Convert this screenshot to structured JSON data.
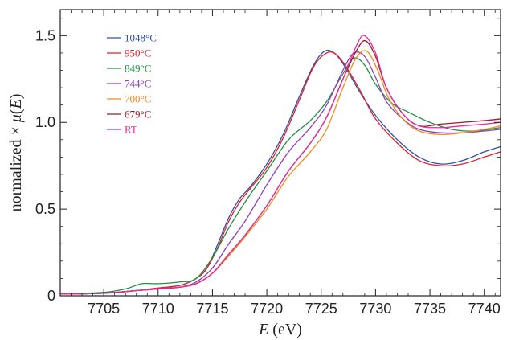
{
  "chart_data": {
    "type": "line",
    "title": "",
    "xlabel_italic": "E",
    "xlabel_rest": " (eV)",
    "ylabel_prefix": "normalized × ",
    "ylabel_mu": "μ",
    "ylabel_open": "(",
    "ylabel_italic": "E",
    "ylabel_close": ")",
    "xlim": [
      7701,
      7741.5
    ],
    "ylim": [
      0,
      1.65
    ],
    "xticks": [
      {
        "value": 7705,
        "label": "7705"
      },
      {
        "value": 7710,
        "label": "7710"
      },
      {
        "value": 7715,
        "label": "7715"
      },
      {
        "value": 7720,
        "label": "7720"
      },
      {
        "value": 7725,
        "label": "7725"
      },
      {
        "value": 7730,
        "label": "7730"
      },
      {
        "value": 7735,
        "label": "7735"
      },
      {
        "value": 7740,
        "label": "7740"
      }
    ],
    "yticks": [
      {
        "value": 0,
        "label": "0"
      },
      {
        "value": 0.5,
        "label": "0.5"
      },
      {
        "value": 1.0,
        "label": "1.0"
      },
      {
        "value": 1.5,
        "label": "1.5"
      }
    ],
    "legend_position": "top-left",
    "series": [
      {
        "name": "1048°C",
        "color": "#3050a8",
        "x": [
          7701,
          7705,
          7708,
          7710,
          7712,
          7713.5,
          7714.5,
          7715.5,
          7716.5,
          7717.5,
          7718.5,
          7720,
          7721.5,
          7723,
          7724.3,
          7725.3,
          7726.2,
          7727.2,
          7728.5,
          7730,
          7732,
          7734,
          7736,
          7738,
          7740,
          7741.5
        ],
        "y": [
          0.01,
          0.015,
          0.03,
          0.045,
          0.06,
          0.1,
          0.16,
          0.3,
          0.45,
          0.56,
          0.63,
          0.76,
          0.93,
          1.15,
          1.33,
          1.41,
          1.4,
          1.32,
          1.18,
          1.04,
          0.9,
          0.8,
          0.76,
          0.78,
          0.83,
          0.86
        ]
      },
      {
        "name": "950°C",
        "color": "#e0202a",
        "x": [
          7701,
          7705,
          7708,
          7710,
          7712,
          7713.5,
          7714.5,
          7715.5,
          7716.5,
          7717.5,
          7718.5,
          7720,
          7721.5,
          7723,
          7724.3,
          7725.5,
          7726.4,
          7727.4,
          7728.7,
          7730,
          7732,
          7734,
          7736,
          7738,
          7740,
          7741.5
        ],
        "y": [
          0.01,
          0.015,
          0.03,
          0.045,
          0.06,
          0.1,
          0.16,
          0.28,
          0.43,
          0.54,
          0.62,
          0.74,
          0.91,
          1.13,
          1.32,
          1.4,
          1.39,
          1.31,
          1.17,
          1.02,
          0.88,
          0.78,
          0.75,
          0.76,
          0.8,
          0.83
        ]
      },
      {
        "name": "849°C",
        "color": "#1f8f48",
        "x": [
          7701,
          7705,
          7707,
          7708.5,
          7710,
          7712,
          7713.5,
          7715,
          7716.5,
          7718,
          7720,
          7722,
          7724,
          7725.5,
          7727,
          7728,
          7729,
          7730,
          7731.5,
          7733,
          7735,
          7737,
          7739,
          7741.5
        ],
        "y": [
          0.01,
          0.02,
          0.04,
          0.07,
          0.07,
          0.08,
          0.1,
          0.22,
          0.39,
          0.54,
          0.72,
          0.9,
          1.01,
          1.12,
          1.28,
          1.37,
          1.33,
          1.22,
          1.11,
          1.06,
          1.0,
          0.96,
          0.95,
          0.97
        ]
      },
      {
        "name": "744°C",
        "color": "#9040b8",
        "x": [
          7701,
          7705,
          7708,
          7710,
          7712,
          7713.5,
          7715,
          7716.5,
          7718,
          7720,
          7722,
          7724,
          7725.5,
          7727,
          7728,
          7729,
          7730,
          7731,
          7732.5,
          7734,
          7736,
          7738,
          7740,
          7741.5
        ],
        "y": [
          0.01,
          0.015,
          0.03,
          0.04,
          0.05,
          0.08,
          0.16,
          0.3,
          0.43,
          0.64,
          0.83,
          0.97,
          1.1,
          1.3,
          1.4,
          1.38,
          1.26,
          1.12,
          1.02,
          0.96,
          0.94,
          0.94,
          0.95,
          0.96
        ]
      },
      {
        "name": "700°C",
        "color": "#f08c1a",
        "x": [
          7701,
          7705,
          7708,
          7710,
          7712,
          7713.5,
          7715,
          7716.5,
          7718,
          7720,
          7722,
          7724,
          7725.5,
          7727,
          7728.2,
          7729.2,
          7730.2,
          7731.2,
          7732.5,
          7734,
          7736,
          7738,
          7740,
          7741.5
        ],
        "y": [
          0.01,
          0.015,
          0.03,
          0.04,
          0.05,
          0.07,
          0.13,
          0.23,
          0.34,
          0.5,
          0.69,
          0.83,
          0.96,
          1.2,
          1.37,
          1.41,
          1.3,
          1.14,
          1.02,
          0.95,
          0.93,
          0.94,
          0.96,
          0.98
        ]
      },
      {
        "name": "679°C",
        "color": "#9e1a2c",
        "x": [
          7701,
          7705,
          7708,
          7710,
          7712,
          7713.5,
          7715,
          7716.5,
          7718,
          7720,
          7722,
          7724,
          7725.5,
          7727,
          7728.3,
          7729.1,
          7730,
          7731,
          7732.5,
          7734,
          7736,
          7738,
          7740,
          7741.5
        ],
        "y": [
          0.01,
          0.015,
          0.03,
          0.04,
          0.05,
          0.07,
          0.13,
          0.24,
          0.35,
          0.52,
          0.72,
          0.88,
          1.03,
          1.25,
          1.42,
          1.47,
          1.38,
          1.2,
          1.05,
          0.98,
          0.99,
          1.0,
          1.01,
          1.02
        ]
      },
      {
        "name": "RT",
        "color": "#e8289c",
        "x": [
          7701,
          7705,
          7708,
          7710,
          7712,
          7713.5,
          7715,
          7716.5,
          7718,
          7720,
          7722,
          7724,
          7725.5,
          7727,
          7728.3,
          7729,
          7730,
          7731,
          7732.5,
          7734,
          7736,
          7738,
          7740,
          7741.5
        ],
        "y": [
          0.01,
          0.015,
          0.03,
          0.04,
          0.05,
          0.07,
          0.13,
          0.24,
          0.35,
          0.52,
          0.72,
          0.88,
          1.03,
          1.25,
          1.45,
          1.5,
          1.4,
          1.2,
          1.05,
          0.98,
          0.97,
          0.98,
          0.99,
          1.0
        ]
      }
    ]
  }
}
